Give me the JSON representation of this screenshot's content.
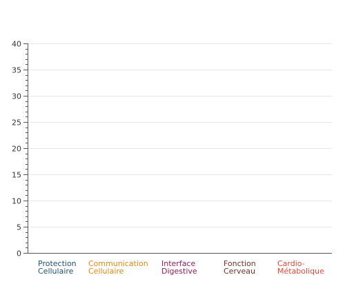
{
  "chart_data": {
    "type": "bar",
    "title": "",
    "xlabel": "",
    "ylabel": "",
    "ylim": [
      0,
      40
    ],
    "ytick_step": 5,
    "minor_ticks_per_major": 5,
    "grid": true,
    "categories": [
      {
        "lines": [
          "Protection",
          "Cellulaire"
        ],
        "color": "#1f4e79"
      },
      {
        "lines": [
          "Communication",
          "Cellulaire"
        ],
        "color": "#e08a14"
      },
      {
        "lines": [
          "Interface",
          "Digestive"
        ],
        "color": "#8e1a5e"
      },
      {
        "lines": [
          "Fonction",
          "Cerveau"
        ],
        "color": "#6e2f23"
      },
      {
        "lines": [
          "Cardio-",
          "Métabolique"
        ],
        "color": "#d9473a"
      }
    ],
    "values": [
      0,
      0,
      0,
      0,
      0
    ],
    "colors": {
      "axis": "#555555",
      "grid": "#e6e6e6",
      "tick_label": "#333333"
    }
  }
}
